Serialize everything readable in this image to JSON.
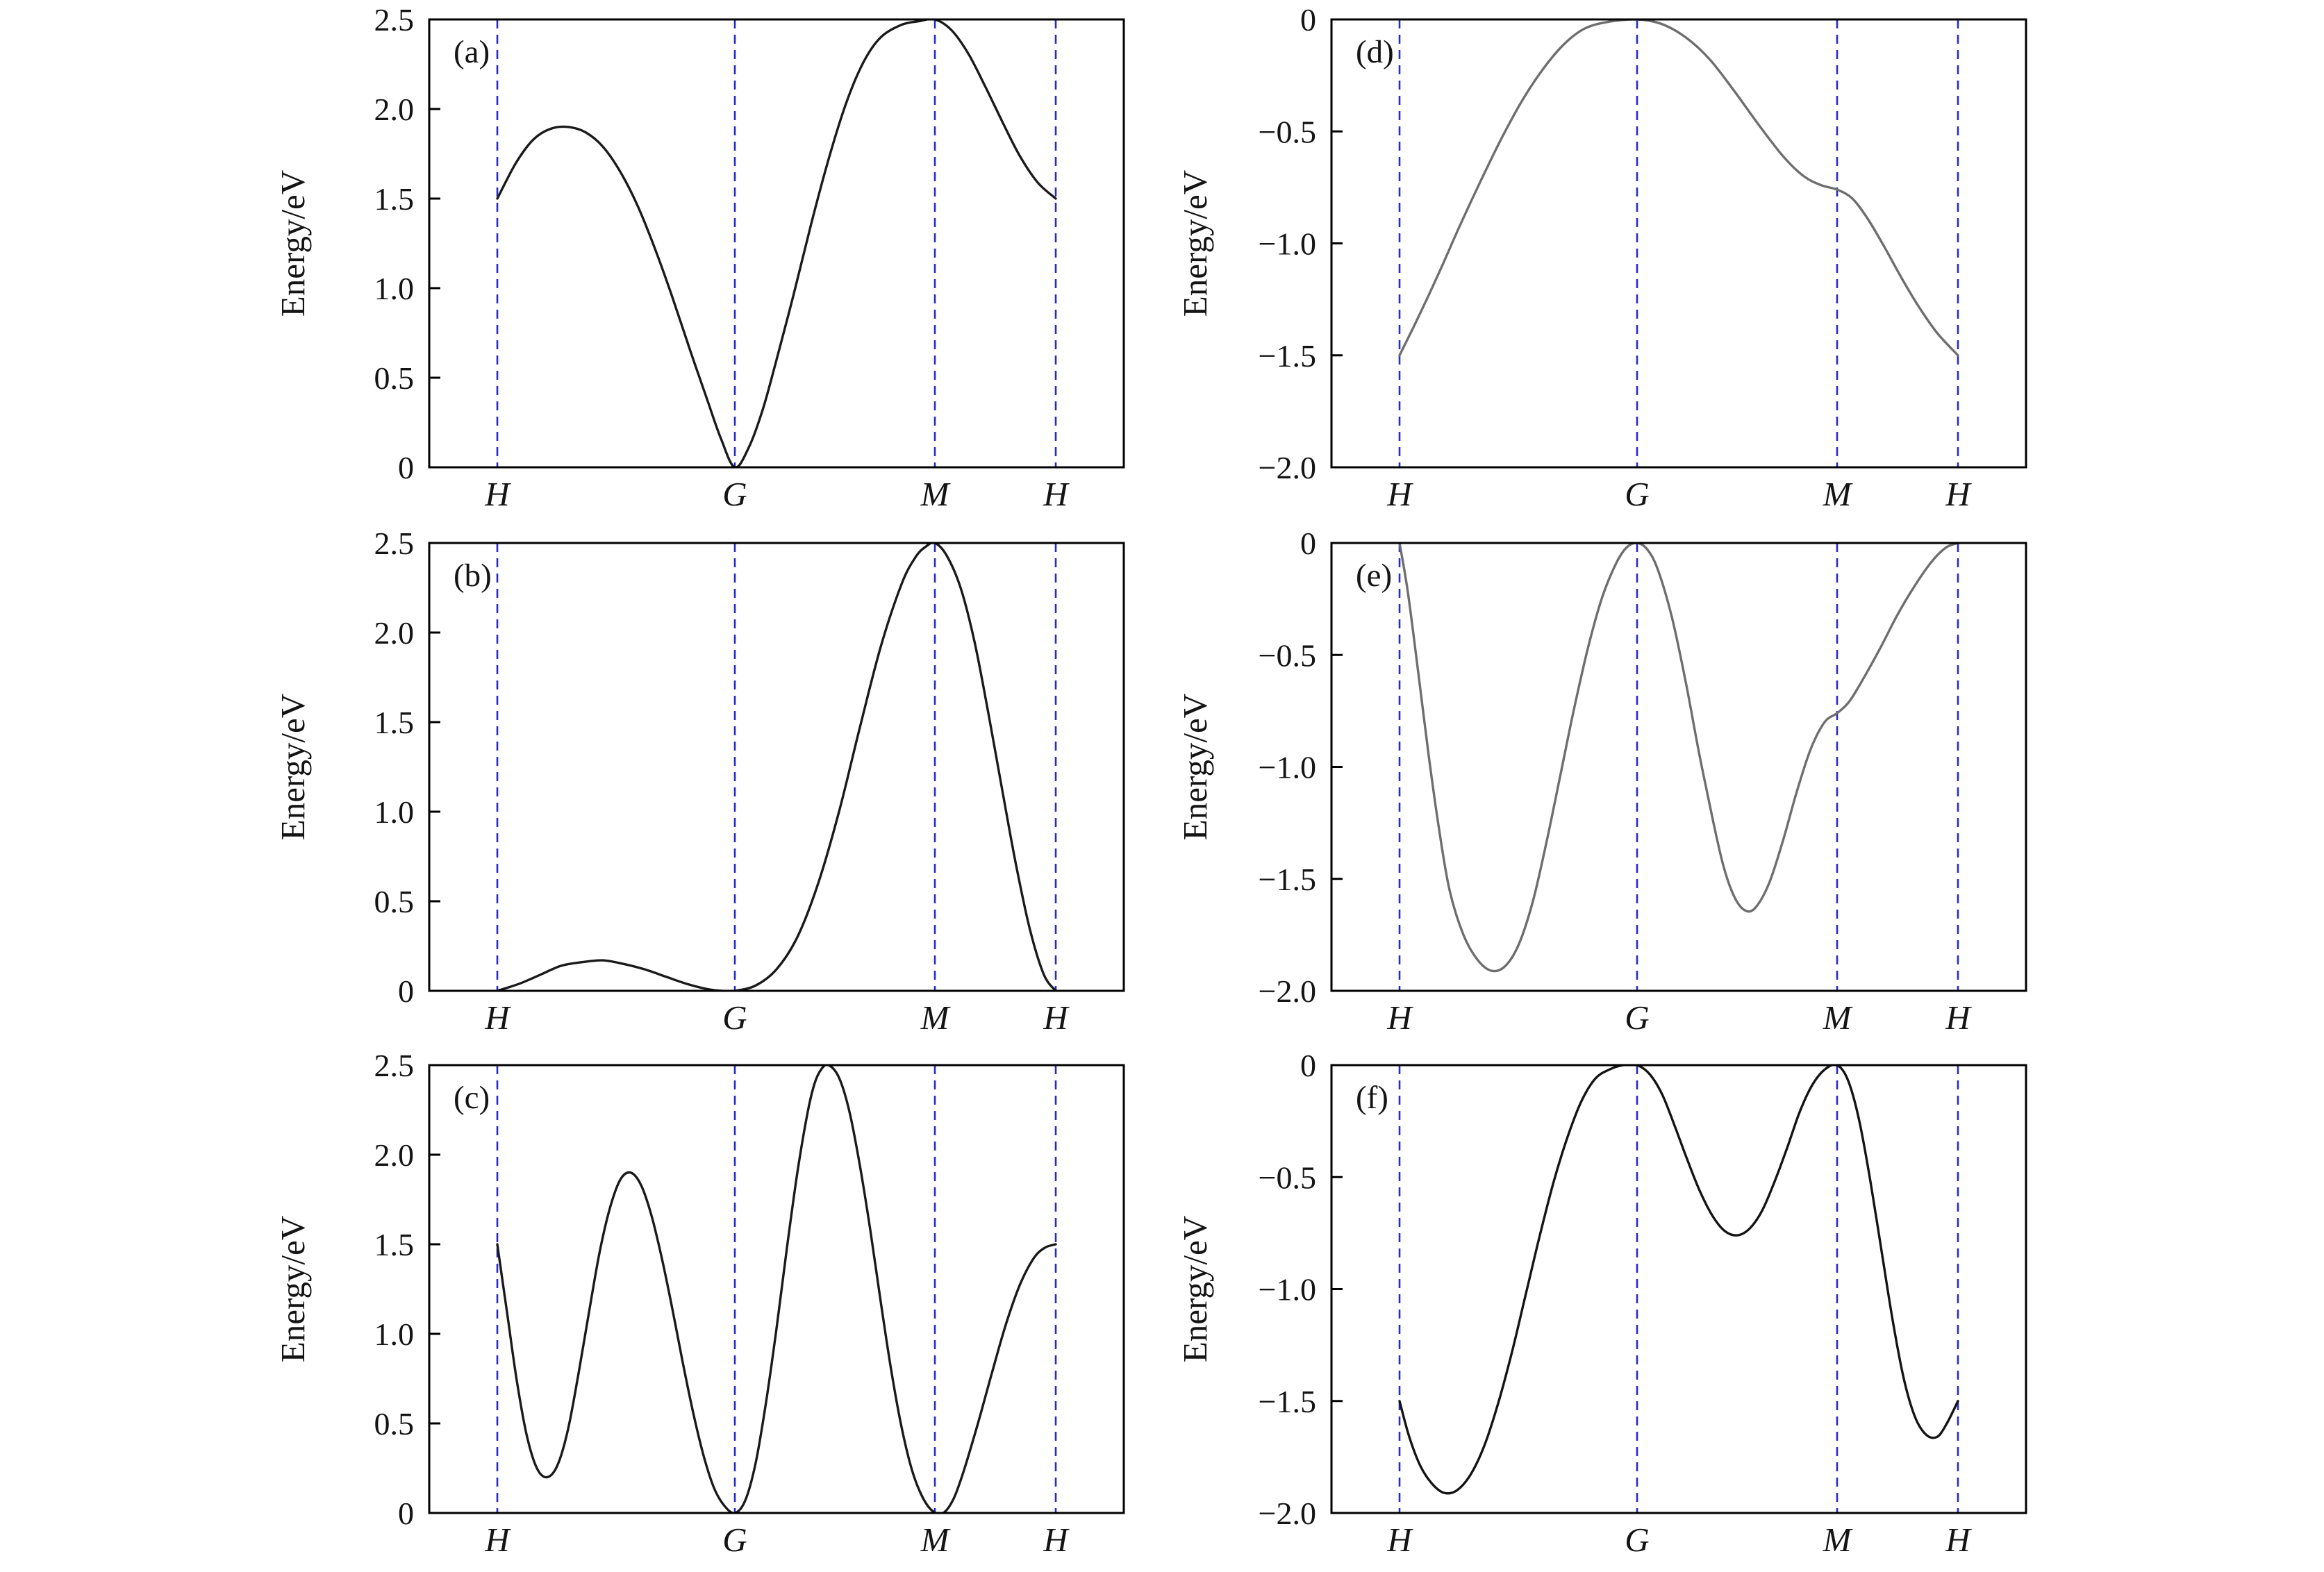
{
  "figure": {
    "background_color": "#ffffff",
    "axis_color": "#000000",
    "dashed_line_color": "#2a2ac8"
  },
  "chart_data": [
    {
      "type": "line",
      "panel": "(a)",
      "ylabel": "Energy/eV",
      "ylim": [
        0,
        2.5
      ],
      "yticks": [
        0,
        0.5,
        1.0,
        1.5,
        2.0,
        2.5
      ],
      "ytick_labels": [
        "0",
        "0.5",
        "1.0",
        "1.5",
        "2.0",
        "2.5"
      ],
      "xticks": [
        {
          "label": "H",
          "pos": 0.098
        },
        {
          "label": "G",
          "pos": 0.44
        },
        {
          "label": "M",
          "pos": 0.728
        },
        {
          "label": "H",
          "pos": 0.902
        }
      ],
      "line_color": "#1a1a1a",
      "grid": false,
      "points": [
        [
          0.098,
          1.5
        ],
        [
          0.125,
          1.7
        ],
        [
          0.15,
          1.83
        ],
        [
          0.175,
          1.89
        ],
        [
          0.2,
          1.9
        ],
        [
          0.225,
          1.87
        ],
        [
          0.25,
          1.79
        ],
        [
          0.275,
          1.65
        ],
        [
          0.3,
          1.46
        ],
        [
          0.325,
          1.22
        ],
        [
          0.35,
          0.95
        ],
        [
          0.375,
          0.66
        ],
        [
          0.4,
          0.38
        ],
        [
          0.42,
          0.16
        ],
        [
          0.44,
          0.0
        ],
        [
          0.46,
          0.11
        ],
        [
          0.48,
          0.32
        ],
        [
          0.5,
          0.6
        ],
        [
          0.525,
          0.97
        ],
        [
          0.55,
          1.36
        ],
        [
          0.575,
          1.72
        ],
        [
          0.6,
          2.03
        ],
        [
          0.625,
          2.26
        ],
        [
          0.65,
          2.4
        ],
        [
          0.68,
          2.47
        ],
        [
          0.705,
          2.49
        ],
        [
          0.728,
          2.5
        ],
        [
          0.752,
          2.44
        ],
        [
          0.776,
          2.31
        ],
        [
          0.8,
          2.13
        ],
        [
          0.825,
          1.93
        ],
        [
          0.85,
          1.74
        ],
        [
          0.876,
          1.59
        ],
        [
          0.902,
          1.5
        ]
      ]
    },
    {
      "type": "line",
      "panel": "(b)",
      "ylabel": "Energy/eV",
      "ylim": [
        0,
        2.5
      ],
      "yticks": [
        0,
        0.5,
        1.0,
        1.5,
        2.0,
        2.5
      ],
      "ytick_labels": [
        "0",
        "0.5",
        "1.0",
        "1.5",
        "2.0",
        "2.5"
      ],
      "xticks": [
        {
          "label": "H",
          "pos": 0.098
        },
        {
          "label": "G",
          "pos": 0.44
        },
        {
          "label": "M",
          "pos": 0.728
        },
        {
          "label": "H",
          "pos": 0.902
        }
      ],
      "line_color": "#1a1a1a",
      "grid": false,
      "points": [
        [
          0.098,
          0.0
        ],
        [
          0.13,
          0.04
        ],
        [
          0.16,
          0.09
        ],
        [
          0.19,
          0.14
        ],
        [
          0.22,
          0.16
        ],
        [
          0.25,
          0.17
        ],
        [
          0.28,
          0.15
        ],
        [
          0.31,
          0.12
        ],
        [
          0.34,
          0.08
        ],
        [
          0.37,
          0.04
        ],
        [
          0.4,
          0.01
        ],
        [
          0.42,
          0.0
        ],
        [
          0.44,
          0.0
        ],
        [
          0.47,
          0.03
        ],
        [
          0.5,
          0.12
        ],
        [
          0.53,
          0.3
        ],
        [
          0.56,
          0.6
        ],
        [
          0.59,
          1.0
        ],
        [
          0.62,
          1.47
        ],
        [
          0.65,
          1.92
        ],
        [
          0.68,
          2.27
        ],
        [
          0.7,
          2.42
        ],
        [
          0.715,
          2.48
        ],
        [
          0.728,
          2.5
        ],
        [
          0.745,
          2.43
        ],
        [
          0.765,
          2.25
        ],
        [
          0.785,
          1.95
        ],
        [
          0.805,
          1.55
        ],
        [
          0.825,
          1.12
        ],
        [
          0.845,
          0.7
        ],
        [
          0.865,
          0.34
        ],
        [
          0.885,
          0.09
        ],
        [
          0.902,
          0.0
        ]
      ]
    },
    {
      "type": "line",
      "panel": "(c)",
      "ylabel": "Energy/eV",
      "ylim": [
        0,
        2.5
      ],
      "yticks": [
        0,
        0.5,
        1.0,
        1.5,
        2.0,
        2.5
      ],
      "ytick_labels": [
        "0",
        "0.5",
        "1.0",
        "1.5",
        "2.0",
        "2.5"
      ],
      "xticks": [
        {
          "label": "H",
          "pos": 0.098
        },
        {
          "label": "G",
          "pos": 0.44
        },
        {
          "label": "M",
          "pos": 0.728
        },
        {
          "label": "H",
          "pos": 0.902
        }
      ],
      "line_color": "#1a1a1a",
      "grid": false,
      "points": [
        [
          0.098,
          1.5
        ],
        [
          0.112,
          1.12
        ],
        [
          0.126,
          0.74
        ],
        [
          0.14,
          0.44
        ],
        [
          0.155,
          0.25
        ],
        [
          0.17,
          0.2
        ],
        [
          0.185,
          0.27
        ],
        [
          0.2,
          0.47
        ],
        [
          0.215,
          0.78
        ],
        [
          0.23,
          1.12
        ],
        [
          0.245,
          1.45
        ],
        [
          0.26,
          1.7
        ],
        [
          0.275,
          1.86
        ],
        [
          0.29,
          1.9
        ],
        [
          0.305,
          1.83
        ],
        [
          0.32,
          1.66
        ],
        [
          0.335,
          1.42
        ],
        [
          0.35,
          1.14
        ],
        [
          0.365,
          0.84
        ],
        [
          0.38,
          0.56
        ],
        [
          0.395,
          0.32
        ],
        [
          0.41,
          0.14
        ],
        [
          0.425,
          0.04
        ],
        [
          0.44,
          0.0
        ],
        [
          0.455,
          0.07
        ],
        [
          0.47,
          0.28
        ],
        [
          0.485,
          0.62
        ],
        [
          0.5,
          1.03
        ],
        [
          0.515,
          1.48
        ],
        [
          0.53,
          1.9
        ],
        [
          0.545,
          2.24
        ],
        [
          0.555,
          2.4
        ],
        [
          0.565,
          2.48
        ],
        [
          0.575,
          2.5
        ],
        [
          0.59,
          2.43
        ],
        [
          0.605,
          2.24
        ],
        [
          0.62,
          1.94
        ],
        [
          0.635,
          1.58
        ],
        [
          0.65,
          1.18
        ],
        [
          0.665,
          0.8
        ],
        [
          0.68,
          0.48
        ],
        [
          0.695,
          0.24
        ],
        [
          0.71,
          0.09
        ],
        [
          0.725,
          0.01
        ],
        [
          0.74,
          0.0
        ],
        [
          0.755,
          0.08
        ],
        [
          0.77,
          0.24
        ],
        [
          0.79,
          0.5
        ],
        [
          0.81,
          0.78
        ],
        [
          0.83,
          1.05
        ],
        [
          0.85,
          1.27
        ],
        [
          0.87,
          1.42
        ],
        [
          0.886,
          1.48
        ],
        [
          0.902,
          1.5
        ]
      ]
    },
    {
      "type": "line",
      "panel": "(d)",
      "ylabel": "Energy/eV",
      "ylim": [
        -2.0,
        0
      ],
      "yticks": [
        0,
        -0.5,
        -1.0,
        -1.5,
        -2.0
      ],
      "ytick_labels": [
        "0",
        "−0.5",
        "−1.0",
        "−1.5",
        "−2.0"
      ],
      "xticks": [
        {
          "label": "H",
          "pos": 0.098
        },
        {
          "label": "G",
          "pos": 0.44
        },
        {
          "label": "M",
          "pos": 0.728
        },
        {
          "label": "H",
          "pos": 0.902
        }
      ],
      "line_color": "#6e6e6e",
      "grid": false,
      "points": [
        [
          0.098,
          -1.5
        ],
        [
          0.125,
          -1.33
        ],
        [
          0.155,
          -1.13
        ],
        [
          0.185,
          -0.92
        ],
        [
          0.215,
          -0.72
        ],
        [
          0.245,
          -0.53
        ],
        [
          0.275,
          -0.36
        ],
        [
          0.305,
          -0.22
        ],
        [
          0.335,
          -0.11
        ],
        [
          0.365,
          -0.04
        ],
        [
          0.4,
          -0.01
        ],
        [
          0.44,
          0.0
        ],
        [
          0.475,
          -0.02
        ],
        [
          0.51,
          -0.08
        ],
        [
          0.545,
          -0.18
        ],
        [
          0.58,
          -0.32
        ],
        [
          0.615,
          -0.47
        ],
        [
          0.65,
          -0.61
        ],
        [
          0.68,
          -0.7
        ],
        [
          0.705,
          -0.74
        ],
        [
          0.728,
          -0.76
        ],
        [
          0.75,
          -0.8
        ],
        [
          0.772,
          -0.89
        ],
        [
          0.795,
          -1.01
        ],
        [
          0.82,
          -1.15
        ],
        [
          0.845,
          -1.28
        ],
        [
          0.872,
          -1.4
        ],
        [
          0.902,
          -1.5
        ]
      ]
    },
    {
      "type": "line",
      "panel": "(e)",
      "ylabel": "Energy/eV",
      "ylim": [
        -2.0,
        0
      ],
      "yticks": [
        0,
        -0.5,
        -1.0,
        -1.5,
        -2.0
      ],
      "ytick_labels": [
        "0",
        "−0.5",
        "−1.0",
        "−1.5",
        "−2.0"
      ],
      "xticks": [
        {
          "label": "H",
          "pos": 0.098
        },
        {
          "label": "G",
          "pos": 0.44
        },
        {
          "label": "M",
          "pos": 0.728
        },
        {
          "label": "H",
          "pos": 0.902
        }
      ],
      "line_color": "#6e6e6e",
      "grid": false,
      "points": [
        [
          0.098,
          0.0
        ],
        [
          0.11,
          -0.22
        ],
        [
          0.125,
          -0.58
        ],
        [
          0.14,
          -0.95
        ],
        [
          0.155,
          -1.28
        ],
        [
          0.17,
          -1.55
        ],
        [
          0.19,
          -1.75
        ],
        [
          0.21,
          -1.86
        ],
        [
          0.23,
          -1.91
        ],
        [
          0.25,
          -1.89
        ],
        [
          0.27,
          -1.79
        ],
        [
          0.29,
          -1.6
        ],
        [
          0.31,
          -1.33
        ],
        [
          0.33,
          -1.03
        ],
        [
          0.35,
          -0.73
        ],
        [
          0.37,
          -0.46
        ],
        [
          0.39,
          -0.24
        ],
        [
          0.41,
          -0.09
        ],
        [
          0.425,
          -0.02
        ],
        [
          0.44,
          0.0
        ],
        [
          0.455,
          -0.03
        ],
        [
          0.47,
          -0.12
        ],
        [
          0.49,
          -0.33
        ],
        [
          0.51,
          -0.62
        ],
        [
          0.53,
          -0.95
        ],
        [
          0.55,
          -1.25
        ],
        [
          0.565,
          -1.45
        ],
        [
          0.58,
          -1.58
        ],
        [
          0.595,
          -1.64
        ],
        [
          0.61,
          -1.63
        ],
        [
          0.63,
          -1.52
        ],
        [
          0.65,
          -1.33
        ],
        [
          0.67,
          -1.11
        ],
        [
          0.69,
          -0.92
        ],
        [
          0.71,
          -0.8
        ],
        [
          0.728,
          -0.76
        ],
        [
          0.745,
          -0.71
        ],
        [
          0.765,
          -0.61
        ],
        [
          0.79,
          -0.47
        ],
        [
          0.815,
          -0.32
        ],
        [
          0.84,
          -0.19
        ],
        [
          0.865,
          -0.08
        ],
        [
          0.885,
          -0.02
        ],
        [
          0.902,
          0.0
        ]
      ]
    },
    {
      "type": "line",
      "panel": "(f)",
      "ylabel": "Energy/eV",
      "ylim": [
        -2.0,
        0
      ],
      "yticks": [
        0,
        -0.5,
        -1.0,
        -1.5,
        -2.0
      ],
      "ytick_labels": [
        "0",
        "−0.5",
        "−1.0",
        "−1.5",
        "−2.0"
      ],
      "xticks": [
        {
          "label": "H",
          "pos": 0.098
        },
        {
          "label": "G",
          "pos": 0.44
        },
        {
          "label": "M",
          "pos": 0.728
        },
        {
          "label": "H",
          "pos": 0.902
        }
      ],
      "line_color": "#141414",
      "grid": false,
      "points": [
        [
          0.098,
          -1.5
        ],
        [
          0.112,
          -1.66
        ],
        [
          0.128,
          -1.79
        ],
        [
          0.145,
          -1.87
        ],
        [
          0.162,
          -1.91
        ],
        [
          0.18,
          -1.9
        ],
        [
          0.2,
          -1.83
        ],
        [
          0.22,
          -1.7
        ],
        [
          0.24,
          -1.51
        ],
        [
          0.26,
          -1.28
        ],
        [
          0.28,
          -1.02
        ],
        [
          0.3,
          -0.76
        ],
        [
          0.32,
          -0.52
        ],
        [
          0.34,
          -0.32
        ],
        [
          0.36,
          -0.16
        ],
        [
          0.38,
          -0.06
        ],
        [
          0.4,
          -0.02
        ],
        [
          0.42,
          0.0
        ],
        [
          0.44,
          0.0
        ],
        [
          0.458,
          -0.04
        ],
        [
          0.476,
          -0.13
        ],
        [
          0.494,
          -0.27
        ],
        [
          0.512,
          -0.42
        ],
        [
          0.53,
          -0.56
        ],
        [
          0.548,
          -0.67
        ],
        [
          0.566,
          -0.74
        ],
        [
          0.584,
          -0.76
        ],
        [
          0.602,
          -0.73
        ],
        [
          0.62,
          -0.65
        ],
        [
          0.638,
          -0.52
        ],
        [
          0.656,
          -0.37
        ],
        [
          0.674,
          -0.21
        ],
        [
          0.692,
          -0.09
        ],
        [
          0.71,
          -0.02
        ],
        [
          0.728,
          0.0
        ],
        [
          0.744,
          -0.07
        ],
        [
          0.76,
          -0.25
        ],
        [
          0.776,
          -0.52
        ],
        [
          0.792,
          -0.83
        ],
        [
          0.808,
          -1.14
        ],
        [
          0.824,
          -1.4
        ],
        [
          0.84,
          -1.57
        ],
        [
          0.856,
          -1.65
        ],
        [
          0.872,
          -1.66
        ],
        [
          0.886,
          -1.6
        ],
        [
          0.902,
          -1.5
        ]
      ]
    }
  ]
}
